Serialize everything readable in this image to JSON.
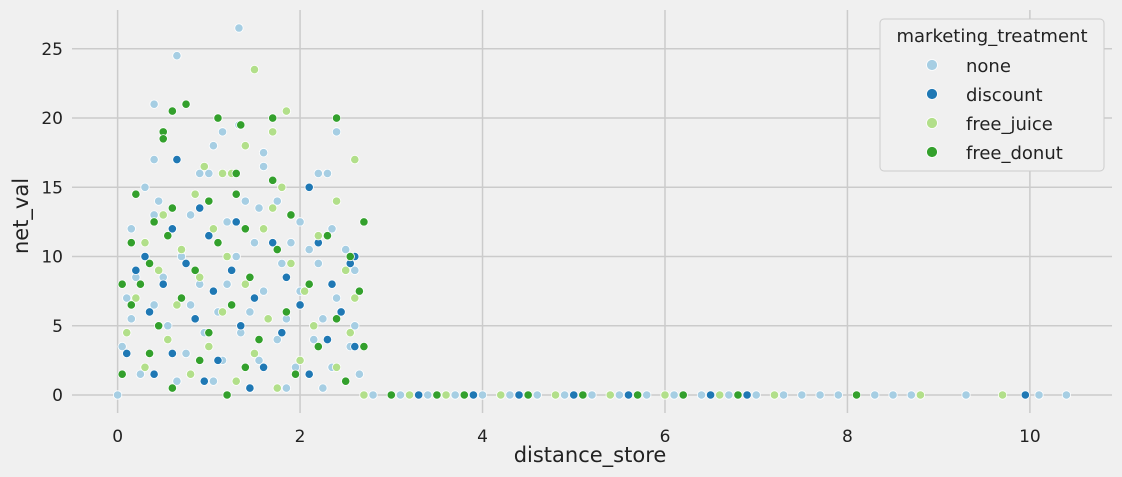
{
  "chart_data": {
    "type": "scatter",
    "title": "",
    "xlabel": "distance_store",
    "ylabel": "net_val",
    "xlim": [
      -0.5,
      10.9
    ],
    "ylim": [
      -1.3,
      27.8
    ],
    "xticks": [
      0,
      2,
      4,
      6,
      8,
      10
    ],
    "yticks": [
      0,
      5,
      10,
      15,
      20,
      25
    ],
    "grid": true,
    "legend": {
      "title": "marketing_treatment",
      "placement": "top-right"
    },
    "series": [
      {
        "name": "none",
        "color": "#a6cee3",
        "points": [
          [
            1.33,
            26.5
          ],
          [
            0.65,
            24.5
          ],
          [
            0.4,
            21.0
          ],
          [
            1.15,
            19.0
          ],
          [
            1.33,
            19.5
          ],
          [
            2.4,
            19.0
          ],
          [
            1.6,
            17.5
          ],
          [
            1.6,
            16.5
          ],
          [
            0.4,
            17.0
          ],
          [
            1.05,
            18.0
          ],
          [
            2.2,
            16.0
          ],
          [
            2.3,
            16.0
          ],
          [
            0.9,
            16.0
          ],
          [
            1.0,
            16.0
          ],
          [
            0.3,
            15.0
          ],
          [
            0.45,
            14.0
          ],
          [
            1.0,
            14.0
          ],
          [
            1.4,
            14.0
          ],
          [
            1.75,
            14.0
          ],
          [
            1.55,
            13.5
          ],
          [
            0.4,
            13.0
          ],
          [
            0.8,
            13.0
          ],
          [
            1.2,
            12.5
          ],
          [
            2.0,
            12.5
          ],
          [
            2.35,
            12.0
          ],
          [
            0.15,
            12.0
          ],
          [
            0.6,
            12.0
          ],
          [
            1.1,
            11.0
          ],
          [
            1.5,
            11.0
          ],
          [
            1.9,
            11.0
          ],
          [
            2.1,
            10.5
          ],
          [
            2.5,
            10.5
          ],
          [
            0.3,
            10.0
          ],
          [
            0.7,
            10.0
          ],
          [
            1.3,
            10.0
          ],
          [
            1.8,
            9.5
          ],
          [
            2.2,
            9.5
          ],
          [
            2.6,
            9.0
          ],
          [
            0.2,
            8.5
          ],
          [
            0.5,
            8.5
          ],
          [
            0.9,
            8.0
          ],
          [
            1.2,
            8.0
          ],
          [
            1.6,
            7.5
          ],
          [
            2.0,
            7.5
          ],
          [
            2.4,
            7.0
          ],
          [
            0.1,
            7.0
          ],
          [
            0.4,
            6.5
          ],
          [
            0.8,
            6.5
          ],
          [
            1.1,
            6.0
          ],
          [
            1.45,
            6.0
          ],
          [
            1.85,
            5.5
          ],
          [
            2.25,
            5.5
          ],
          [
            2.6,
            5.0
          ],
          [
            0.15,
            5.5
          ],
          [
            0.55,
            5.0
          ],
          [
            0.95,
            4.5
          ],
          [
            1.35,
            4.5
          ],
          [
            1.75,
            4.0
          ],
          [
            2.15,
            4.0
          ],
          [
            2.55,
            3.5
          ],
          [
            0.05,
            3.5
          ],
          [
            0.35,
            3.0
          ],
          [
            0.75,
            3.0
          ],
          [
            1.15,
            2.5
          ],
          [
            1.55,
            2.5
          ],
          [
            1.95,
            2.0
          ],
          [
            2.35,
            2.0
          ],
          [
            2.65,
            1.5
          ],
          [
            0.25,
            1.5
          ],
          [
            0.65,
            1.0
          ],
          [
            1.05,
            1.0
          ],
          [
            1.45,
            0.5
          ],
          [
            1.85,
            0.5
          ],
          [
            2.25,
            0.5
          ],
          [
            0.0,
            0.0
          ],
          [
            2.8,
            0.0
          ],
          [
            3.1,
            0.0
          ],
          [
            3.4,
            0.0
          ],
          [
            3.7,
            0.0
          ],
          [
            4.0,
            0.0
          ],
          [
            4.3,
            0.0
          ],
          [
            4.6,
            0.0
          ],
          [
            4.9,
            0.0
          ],
          [
            5.2,
            0.0
          ],
          [
            5.5,
            0.0
          ],
          [
            5.8,
            0.0
          ],
          [
            6.1,
            0.0
          ],
          [
            6.4,
            0.0
          ],
          [
            6.7,
            0.0
          ],
          [
            7.0,
            0.0
          ],
          [
            7.3,
            0.0
          ],
          [
            7.5,
            0.0
          ],
          [
            7.7,
            0.0
          ],
          [
            7.9,
            0.0
          ],
          [
            8.3,
            0.0
          ],
          [
            8.5,
            0.0
          ],
          [
            8.7,
            0.0
          ],
          [
            9.3,
            0.0
          ],
          [
            10.1,
            0.0
          ],
          [
            10.4,
            0.0
          ]
        ]
      },
      {
        "name": "discount",
        "color": "#1f78b4",
        "points": [
          [
            0.65,
            17.0
          ],
          [
            2.1,
            15.0
          ],
          [
            0.9,
            13.5
          ],
          [
            1.3,
            12.5
          ],
          [
            0.6,
            12.0
          ],
          [
            2.2,
            11.0
          ],
          [
            2.6,
            10.0
          ],
          [
            2.55,
            9.5
          ],
          [
            1.0,
            11.5
          ],
          [
            1.7,
            11.0
          ],
          [
            0.3,
            10.0
          ],
          [
            0.75,
            9.5
          ],
          [
            1.25,
            9.0
          ],
          [
            1.85,
            8.5
          ],
          [
            2.35,
            8.0
          ],
          [
            0.2,
            9.0
          ],
          [
            0.5,
            8.0
          ],
          [
            1.05,
            7.5
          ],
          [
            1.5,
            7.0
          ],
          [
            2.0,
            6.5
          ],
          [
            2.45,
            6.0
          ],
          [
            0.35,
            6.0
          ],
          [
            0.85,
            5.5
          ],
          [
            1.35,
            5.0
          ],
          [
            1.8,
            4.5
          ],
          [
            2.3,
            4.0
          ],
          [
            2.6,
            3.5
          ],
          [
            0.1,
            3.0
          ],
          [
            0.6,
            3.0
          ],
          [
            1.1,
            2.5
          ],
          [
            1.6,
            2.0
          ],
          [
            2.1,
            1.5
          ],
          [
            2.5,
            1.0
          ],
          [
            0.4,
            1.5
          ],
          [
            0.95,
            1.0
          ],
          [
            1.45,
            0.5
          ],
          [
            3.3,
            0.0
          ],
          [
            3.9,
            0.0
          ],
          [
            4.4,
            0.0
          ],
          [
            5.0,
            0.0
          ],
          [
            5.6,
            0.0
          ],
          [
            6.5,
            0.0
          ],
          [
            6.9,
            0.0
          ],
          [
            9.95,
            0.0
          ]
        ]
      },
      {
        "name": "free_juice",
        "color": "#b2df8a",
        "points": [
          [
            1.5,
            23.5
          ],
          [
            1.85,
            20.5
          ],
          [
            1.4,
            18.0
          ],
          [
            1.7,
            19.0
          ],
          [
            2.6,
            17.0
          ],
          [
            0.95,
            16.5
          ],
          [
            1.15,
            16.0
          ],
          [
            1.25,
            16.0
          ],
          [
            1.8,
            15.0
          ],
          [
            0.85,
            14.5
          ],
          [
            2.4,
            14.0
          ],
          [
            1.7,
            13.5
          ],
          [
            0.5,
            13.0
          ],
          [
            1.05,
            12.0
          ],
          [
            1.6,
            12.0
          ],
          [
            2.2,
            11.5
          ],
          [
            0.3,
            11.0
          ],
          [
            0.7,
            10.5
          ],
          [
            1.2,
            10.0
          ],
          [
            1.9,
            9.5
          ],
          [
            2.5,
            9.0
          ],
          [
            0.45,
            9.0
          ],
          [
            0.9,
            8.5
          ],
          [
            1.4,
            8.0
          ],
          [
            2.05,
            7.5
          ],
          [
            2.6,
            7.0
          ],
          [
            0.2,
            7.0
          ],
          [
            0.65,
            6.5
          ],
          [
            1.15,
            6.0
          ],
          [
            1.65,
            5.5
          ],
          [
            2.15,
            5.0
          ],
          [
            2.55,
            4.5
          ],
          [
            0.1,
            4.5
          ],
          [
            0.55,
            4.0
          ],
          [
            1.0,
            3.5
          ],
          [
            1.5,
            3.0
          ],
          [
            2.0,
            2.5
          ],
          [
            2.4,
            2.0
          ],
          [
            0.3,
            2.0
          ],
          [
            0.8,
            1.5
          ],
          [
            1.3,
            1.0
          ],
          [
            1.75,
            0.5
          ],
          [
            2.7,
            0.0
          ],
          [
            3.2,
            0.0
          ],
          [
            3.6,
            0.0
          ],
          [
            4.2,
            0.0
          ],
          [
            4.8,
            0.0
          ],
          [
            5.4,
            0.0
          ],
          [
            6.0,
            0.0
          ],
          [
            6.6,
            0.0
          ],
          [
            7.2,
            0.0
          ],
          [
            8.8,
            0.0
          ],
          [
            9.7,
            0.0
          ]
        ]
      },
      {
        "name": "free_donut",
        "color": "#33a02c",
        "points": [
          [
            0.6,
            20.5
          ],
          [
            0.75,
            21.0
          ],
          [
            1.1,
            20.0
          ],
          [
            2.4,
            20.0
          ],
          [
            1.35,
            19.5
          ],
          [
            1.7,
            20.0
          ],
          [
            0.5,
            19.0
          ],
          [
            0.5,
            18.5
          ],
          [
            1.3,
            16.0
          ],
          [
            1.7,
            15.5
          ],
          [
            0.2,
            14.5
          ],
          [
            1.3,
            14.5
          ],
          [
            1.0,
            14.0
          ],
          [
            0.6,
            13.5
          ],
          [
            1.9,
            13.0
          ],
          [
            2.7,
            12.5
          ],
          [
            0.4,
            12.5
          ],
          [
            1.4,
            12.0
          ],
          [
            2.3,
            11.5
          ],
          [
            0.15,
            11.0
          ],
          [
            0.55,
            11.5
          ],
          [
            1.1,
            11.0
          ],
          [
            1.75,
            10.5
          ],
          [
            2.55,
            10.0
          ],
          [
            0.35,
            9.5
          ],
          [
            0.85,
            9.0
          ],
          [
            1.45,
            8.5
          ],
          [
            2.1,
            8.0
          ],
          [
            2.65,
            7.5
          ],
          [
            0.25,
            8.0
          ],
          [
            0.7,
            7.0
          ],
          [
            1.25,
            6.5
          ],
          [
            1.85,
            6.0
          ],
          [
            2.4,
            5.5
          ],
          [
            0.15,
            6.5
          ],
          [
            0.45,
            5.0
          ],
          [
            1.0,
            4.5
          ],
          [
            1.55,
            4.0
          ],
          [
            2.2,
            3.5
          ],
          [
            2.7,
            3.5
          ],
          [
            0.05,
            8.0
          ],
          [
            0.35,
            3.0
          ],
          [
            0.9,
            2.5
          ],
          [
            1.4,
            2.0
          ],
          [
            1.95,
            1.5
          ],
          [
            2.5,
            1.0
          ],
          [
            0.05,
            1.5
          ],
          [
            0.6,
            0.5
          ],
          [
            1.2,
            0.0
          ],
          [
            3.0,
            0.0
          ],
          [
            3.5,
            0.0
          ],
          [
            3.8,
            0.0
          ],
          [
            4.5,
            0.0
          ],
          [
            5.1,
            0.0
          ],
          [
            5.7,
            0.0
          ],
          [
            6.2,
            0.0
          ],
          [
            6.8,
            0.0
          ],
          [
            8.1,
            0.0
          ]
        ]
      }
    ]
  }
}
